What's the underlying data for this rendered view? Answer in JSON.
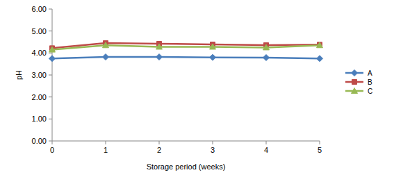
{
  "chart_data": {
    "type": "line",
    "x_label": "Storage period (weeks)",
    "y_label": "pH",
    "x": [
      0,
      1,
      2,
      3,
      4,
      5
    ],
    "xlim": [
      0,
      5
    ],
    "xticks": [
      0,
      1,
      2,
      3,
      4,
      5
    ],
    "ylim": [
      0,
      6
    ],
    "yticks": [
      {
        "value": 0,
        "label": "0.00"
      },
      {
        "value": 1,
        "label": "1.00"
      },
      {
        "value": 2,
        "label": "2.00"
      },
      {
        "value": 3,
        "label": "3.00"
      },
      {
        "value": 4,
        "label": "4.00"
      },
      {
        "value": 5,
        "label": "5.00"
      },
      {
        "value": 6,
        "label": "6.00"
      }
    ],
    "grid": false,
    "legend": "right",
    "series": [
      {
        "name": "A",
        "color": "#4a7ebb",
        "marker": "diamond",
        "values": [
          3.75,
          3.82,
          3.82,
          3.8,
          3.79,
          3.75
        ]
      },
      {
        "name": "B",
        "color": "#be4b48",
        "marker": "square",
        "values": [
          4.22,
          4.45,
          4.42,
          4.39,
          4.36,
          4.38
        ]
      },
      {
        "name": "C",
        "color": "#98b954",
        "marker": "triangle",
        "values": [
          4.15,
          4.35,
          4.28,
          4.28,
          4.25,
          4.35
        ]
      }
    ]
  }
}
